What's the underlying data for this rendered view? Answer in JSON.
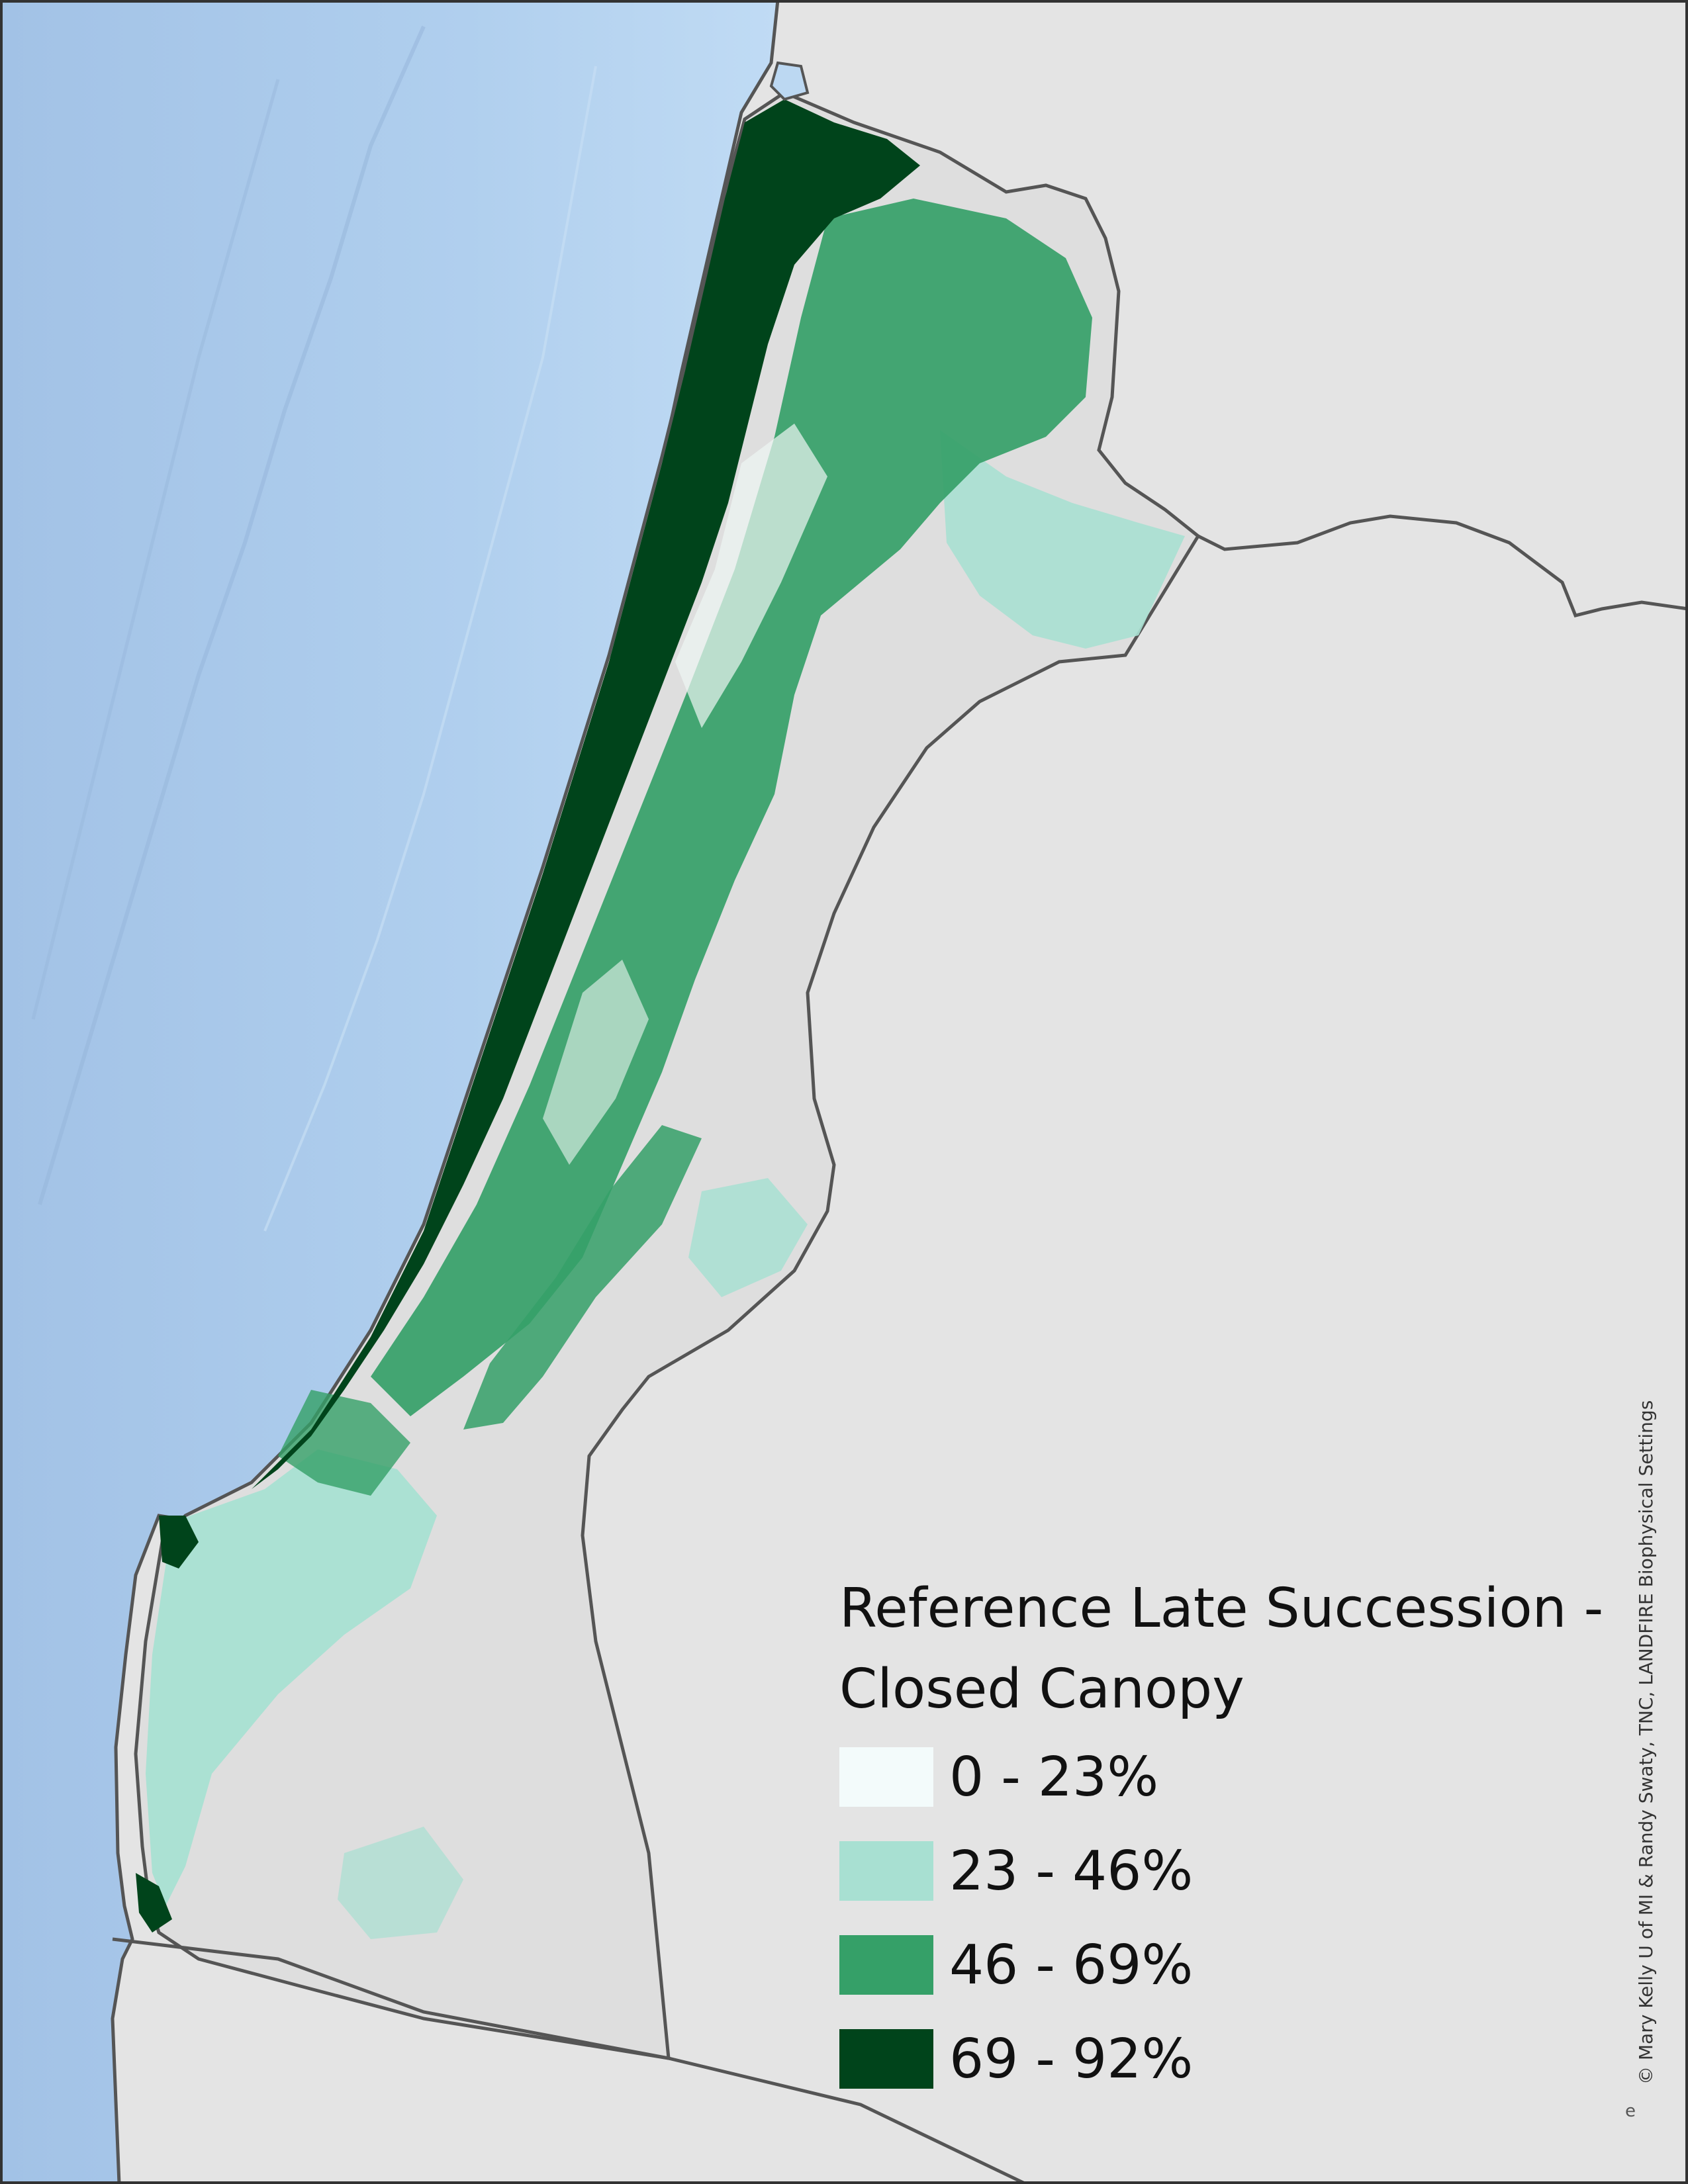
{
  "legend": {
    "title": "Reference Late Succession - Closed Canopy",
    "classes": [
      {
        "label": "0 - 23%",
        "color": "#f3fbfb"
      },
      {
        "label": "23 - 46%",
        "color": "#a8e0d2"
      },
      {
        "label": "46 - 69%",
        "color": "#35a068"
      },
      {
        "label": "69 - 92%",
        "color": "#00441b"
      }
    ]
  },
  "credit": "© Mary Kelly U of MI & Randy Swaty, TNC, LANDFIRE Biophysical Settings",
  "corner_mark": "e",
  "colors": {
    "land": "#e4e4e4",
    "ocean_shallow": "#bcd8f2",
    "ocean_deep": "#a9c9ec",
    "boundary": "#555555"
  }
}
